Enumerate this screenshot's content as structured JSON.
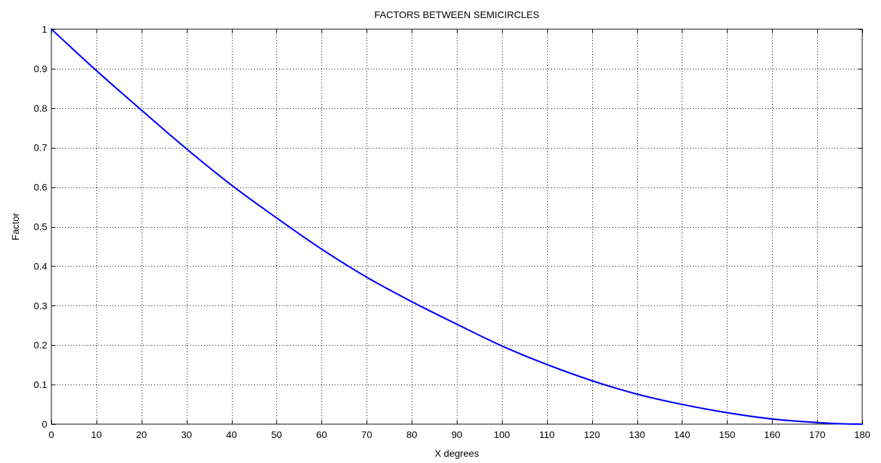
{
  "chart_data": {
    "type": "line",
    "title": "FACTORS BETWEEN SEMICIRCLES",
    "xlabel": "X degrees",
    "ylabel": "Factor",
    "xlim": [
      0,
      180
    ],
    "ylim": [
      0,
      1
    ],
    "xticks": [
      0,
      10,
      20,
      30,
      40,
      50,
      60,
      70,
      80,
      90,
      100,
      110,
      120,
      130,
      140,
      150,
      160,
      170,
      180
    ],
    "yticks": [
      0,
      0.1,
      0.2,
      0.3,
      0.4,
      0.5,
      0.6,
      0.7,
      0.8,
      0.9,
      1
    ],
    "xtick_labels": [
      "0",
      "10",
      "20",
      "30",
      "40",
      "50",
      "60",
      "70",
      "80",
      "90",
      "100",
      "110",
      "120",
      "130",
      "140",
      "150",
      "160",
      "170",
      "180"
    ],
    "ytick_labels": [
      "0",
      "0.1",
      "0.2",
      "0.3",
      "0.4",
      "0.5",
      "0.6",
      "0.7",
      "0.8",
      "0.9",
      "1"
    ],
    "grid": true,
    "grid_style": "dotted",
    "line_color": "#0000ff",
    "series": [
      {
        "x": [
          0,
          10,
          20,
          30,
          40,
          50,
          60,
          70,
          80,
          90,
          100,
          110,
          120,
          130,
          140,
          150,
          160,
          170,
          175,
          180
        ],
        "y": [
          1.0,
          0.895,
          0.795,
          0.697,
          0.605,
          0.522,
          0.443,
          0.372,
          0.31,
          0.253,
          0.198,
          0.151,
          0.11,
          0.076,
          0.05,
          0.029,
          0.013,
          0.004,
          0.001,
          0.0
        ]
      }
    ]
  }
}
